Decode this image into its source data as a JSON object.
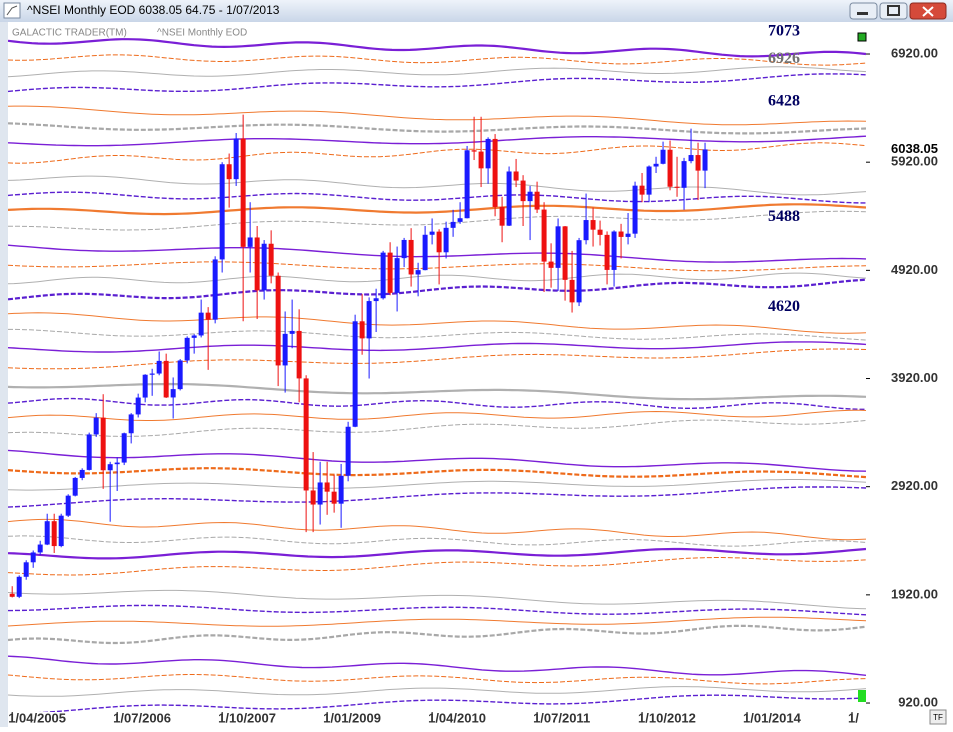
{
  "window_title": "^NSEI Monthly EOD  6038.05    64.75 - 1/07/2013",
  "chart_data": {
    "type": "candlestick",
    "title": "GALACTIC TRADER(TM)",
    "subtitle": "^NSEI Monthly EOD",
    "up_color": "#1a1aff",
    "down_color": "#ee1111",
    "xlim": [
      -0.6,
      122
    ],
    "ylim": [
      837,
      7216
    ],
    "xticks": [
      {
        "value": 0,
        "label": "1/04/2005"
      },
      {
        "value": 15,
        "label": "1/07/2006"
      },
      {
        "value": 30,
        "label": "1/10/2007"
      },
      {
        "value": 45,
        "label": "1/01/2009"
      },
      {
        "value": 60,
        "label": "1/04/2010"
      },
      {
        "value": 75,
        "label": "1/07/2011"
      },
      {
        "value": 90,
        "label": "1/10/2012"
      },
      {
        "value": 105,
        "label": "1/01/2014"
      },
      {
        "value": 120,
        "label": "1/"
      }
    ],
    "yticks": [
      {
        "value": 920,
        "label": "920.00"
      },
      {
        "value": 1920,
        "label": "1920.00"
      },
      {
        "value": 2920,
        "label": "2920.00"
      },
      {
        "value": 3920,
        "label": "3920.00"
      },
      {
        "value": 4920,
        "label": "4920.00"
      },
      {
        "value": 5920,
        "label": "5920.00"
      },
      {
        "value": 6920,
        "label": "6920.00"
      }
    ],
    "last_price": {
      "value": 6038.05,
      "label": "6038.05"
    },
    "level_labels": [
      {
        "value": 7123,
        "label": "7073",
        "color": "#000060"
      },
      {
        "value": 6870,
        "label": "6926",
        "color": "#707070"
      },
      {
        "value": 6480,
        "label": "6428",
        "color": "#000060"
      },
      {
        "value": 5410,
        "label": "5488",
        "color": "#000060"
      },
      {
        "value": 4580,
        "label": "4620",
        "color": "#000060"
      }
    ],
    "candles": [
      [
        1930,
        2000,
        1896,
        1902
      ],
      [
        1902,
        2100,
        1890,
        2087
      ],
      [
        2087,
        2240,
        2060,
        2221
      ],
      [
        2221,
        2330,
        2170,
        2312
      ],
      [
        2312,
        2420,
        2290,
        2385
      ],
      [
        2385,
        2670,
        2380,
        2601
      ],
      [
        2601,
        2670,
        2307,
        2371
      ],
      [
        2371,
        2670,
        2360,
        2652
      ],
      [
        2652,
        2850,
        2640,
        2837
      ],
      [
        2837,
        3010,
        2830,
        3001
      ],
      [
        3001,
        3090,
        2980,
        3075
      ],
      [
        3075,
        3420,
        3070,
        3403
      ],
      [
        3403,
        3600,
        3380,
        3558
      ],
      [
        3558,
        3775,
        2900,
        3072
      ],
      [
        3072,
        3150,
        2596,
        3128
      ],
      [
        3128,
        3190,
        2880,
        3143
      ],
      [
        3143,
        3420,
        3120,
        3414
      ],
      [
        3414,
        3600,
        3320,
        3588
      ],
      [
        3588,
        3780,
        3560,
        3744
      ],
      [
        3744,
        3960,
        3700,
        3955
      ],
      [
        3955,
        4010,
        3760,
        3966
      ],
      [
        3966,
        4170,
        3950,
        4083
      ],
      [
        4083,
        4150,
        3740,
        3745
      ],
      [
        3745,
        3930,
        3550,
        3822
      ],
      [
        3822,
        4100,
        3810,
        4087
      ],
      [
        4087,
        4310,
        4060,
        4296
      ],
      [
        4296,
        4330,
        4150,
        4318
      ],
      [
        4318,
        4650,
        4300,
        4529
      ],
      [
        4529,
        4580,
        4000,
        4464
      ],
      [
        4464,
        5050,
        4430,
        5021
      ],
      [
        5021,
        5920,
        4900,
        5901
      ],
      [
        5901,
        6000,
        5500,
        5763
      ],
      [
        5763,
        6190,
        5700,
        6139
      ],
      [
        6139,
        6360,
        4450,
        5137
      ],
      [
        5137,
        5550,
        4900,
        5224
      ],
      [
        5224,
        5330,
        4470,
        4735
      ],
      [
        4735,
        5200,
        4650,
        5166
      ],
      [
        5166,
        5290,
        4800,
        4870
      ],
      [
        4870,
        4900,
        3850,
        4041
      ],
      [
        4041,
        4540,
        3790,
        4333
      ],
      [
        4333,
        4650,
        4200,
        4360
      ],
      [
        4360,
        4560,
        3700,
        3921
      ],
      [
        3921,
        3950,
        2500,
        2885
      ],
      [
        2885,
        3240,
        2500,
        2755
      ],
      [
        2755,
        3150,
        2570,
        2959
      ],
      [
        2959,
        3150,
        2660,
        2874
      ],
      [
        2874,
        3030,
        2680,
        2763
      ],
      [
        2763,
        3130,
        2540,
        3021
      ],
      [
        3021,
        3520,
        2970,
        3474
      ],
      [
        3474,
        4510,
        3470,
        4449
      ],
      [
        4449,
        4700,
        4140,
        4291
      ],
      [
        4291,
        4670,
        3920,
        4636
      ],
      [
        4636,
        4750,
        4350,
        4662
      ],
      [
        4662,
        5100,
        4650,
        5084
      ],
      [
        5084,
        5180,
        4690,
        4712
      ],
      [
        4712,
        5140,
        4540,
        5033
      ],
      [
        5033,
        5220,
        4950,
        5201
      ],
      [
        5201,
        5310,
        4770,
        4882
      ],
      [
        4882,
        4990,
        4680,
        4922
      ],
      [
        4922,
        5330,
        4920,
        5249
      ],
      [
        5249,
        5400,
        5160,
        5278
      ],
      [
        5278,
        5300,
        4790,
        5087
      ],
      [
        5087,
        5370,
        5030,
        5313
      ],
      [
        5313,
        5480,
        5230,
        5368
      ],
      [
        5368,
        5550,
        5350,
        5402
      ],
      [
        5402,
        6070,
        5400,
        6030
      ],
      [
        6030,
        6340,
        5940,
        6018
      ],
      [
        6018,
        6340,
        5690,
        5863
      ],
      [
        5863,
        6150,
        5720,
        6135
      ],
      [
        6135,
        6180,
        5420,
        5506
      ],
      [
        5506,
        5600,
        5180,
        5333
      ],
      [
        5333,
        5880,
        5330,
        5834
      ],
      [
        5834,
        5950,
        5690,
        5750
      ],
      [
        5750,
        5800,
        5330,
        5560
      ],
      [
        5560,
        5700,
        5200,
        5647
      ],
      [
        5647,
        5740,
        5450,
        5482
      ],
      [
        5482,
        5550,
        4720,
        5001
      ],
      [
        5001,
        5170,
        4760,
        4943
      ],
      [
        4943,
        5400,
        4730,
        5327
      ],
      [
        5327,
        5330,
        4640,
        4832
      ],
      [
        4832,
        5100,
        4530,
        4624
      ],
      [
        4624,
        5220,
        4590,
        5199
      ],
      [
        5199,
        5630,
        5160,
        5385
      ],
      [
        5385,
        5500,
        5140,
        5296
      ],
      [
        5296,
        5380,
        5150,
        5248
      ],
      [
        5248,
        5280,
        4790,
        4924
      ],
      [
        4924,
        5290,
        4770,
        5279
      ],
      [
        5279,
        5350,
        5030,
        5229
      ],
      [
        5229,
        5450,
        5160,
        5259
      ],
      [
        5259,
        5740,
        5220,
        5703
      ],
      [
        5703,
        5820,
        5550,
        5620
      ],
      [
        5620,
        5890,
        5550,
        5880
      ],
      [
        5880,
        5970,
        5820,
        5905
      ],
      [
        5905,
        6110,
        5900,
        6035
      ],
      [
        6035,
        6120,
        5660,
        5693
      ],
      [
        5693,
        5970,
        5600,
        5683
      ],
      [
        5683,
        5960,
        5480,
        5930
      ],
      [
        5930,
        6230,
        5910,
        5986
      ],
      [
        5986,
        6100,
        5570,
        5842
      ],
      [
        5842,
        6100,
        5680,
        6038
      ]
    ]
  },
  "corner_label": "TF"
}
